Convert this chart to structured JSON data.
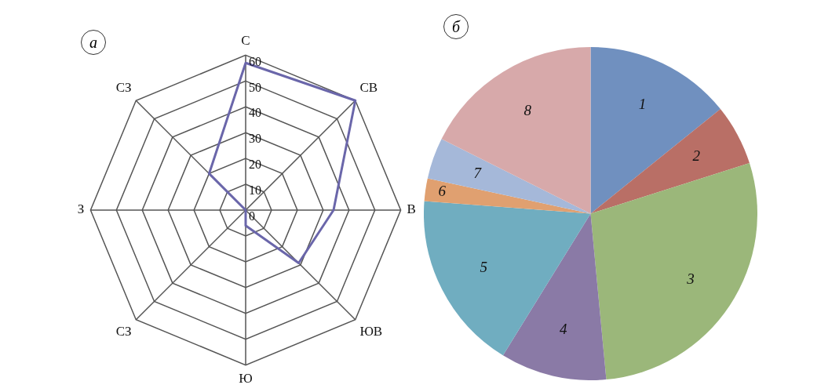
{
  "chart_data": [
    {
      "type": "radar",
      "title": "а",
      "categories": [
        "С",
        "СВ",
        "В",
        "ЮВ",
        "Ю",
        "СЗ",
        "З",
        "СЗ"
      ],
      "series": [
        {
          "color": "#6a66aa",
          "values": [
            57,
            60,
            34,
            29,
            6,
            0,
            0,
            20
          ]
        }
      ],
      "ylim": [
        0,
        60
      ],
      "yticks": [
        0,
        10,
        20,
        30,
        40,
        50,
        60
      ],
      "grid": true,
      "marker": "none",
      "legend": false
    },
    {
      "type": "pie",
      "title": "б",
      "categories": [
        "1",
        "2",
        "3",
        "4",
        "5",
        "6",
        "7",
        "8"
      ],
      "values": [
        14.2,
        5.9,
        28.4,
        10.3,
        17.4,
        2.2,
        4.0,
        17.6
      ],
      "colors": [
        "#7090bf",
        "#b96f66",
        "#9bb77a",
        "#8a7aa6",
        "#70adc0",
        "#e0a070",
        "#a5b8d9",
        "#d7a9aa"
      ],
      "legend": false
    }
  ]
}
